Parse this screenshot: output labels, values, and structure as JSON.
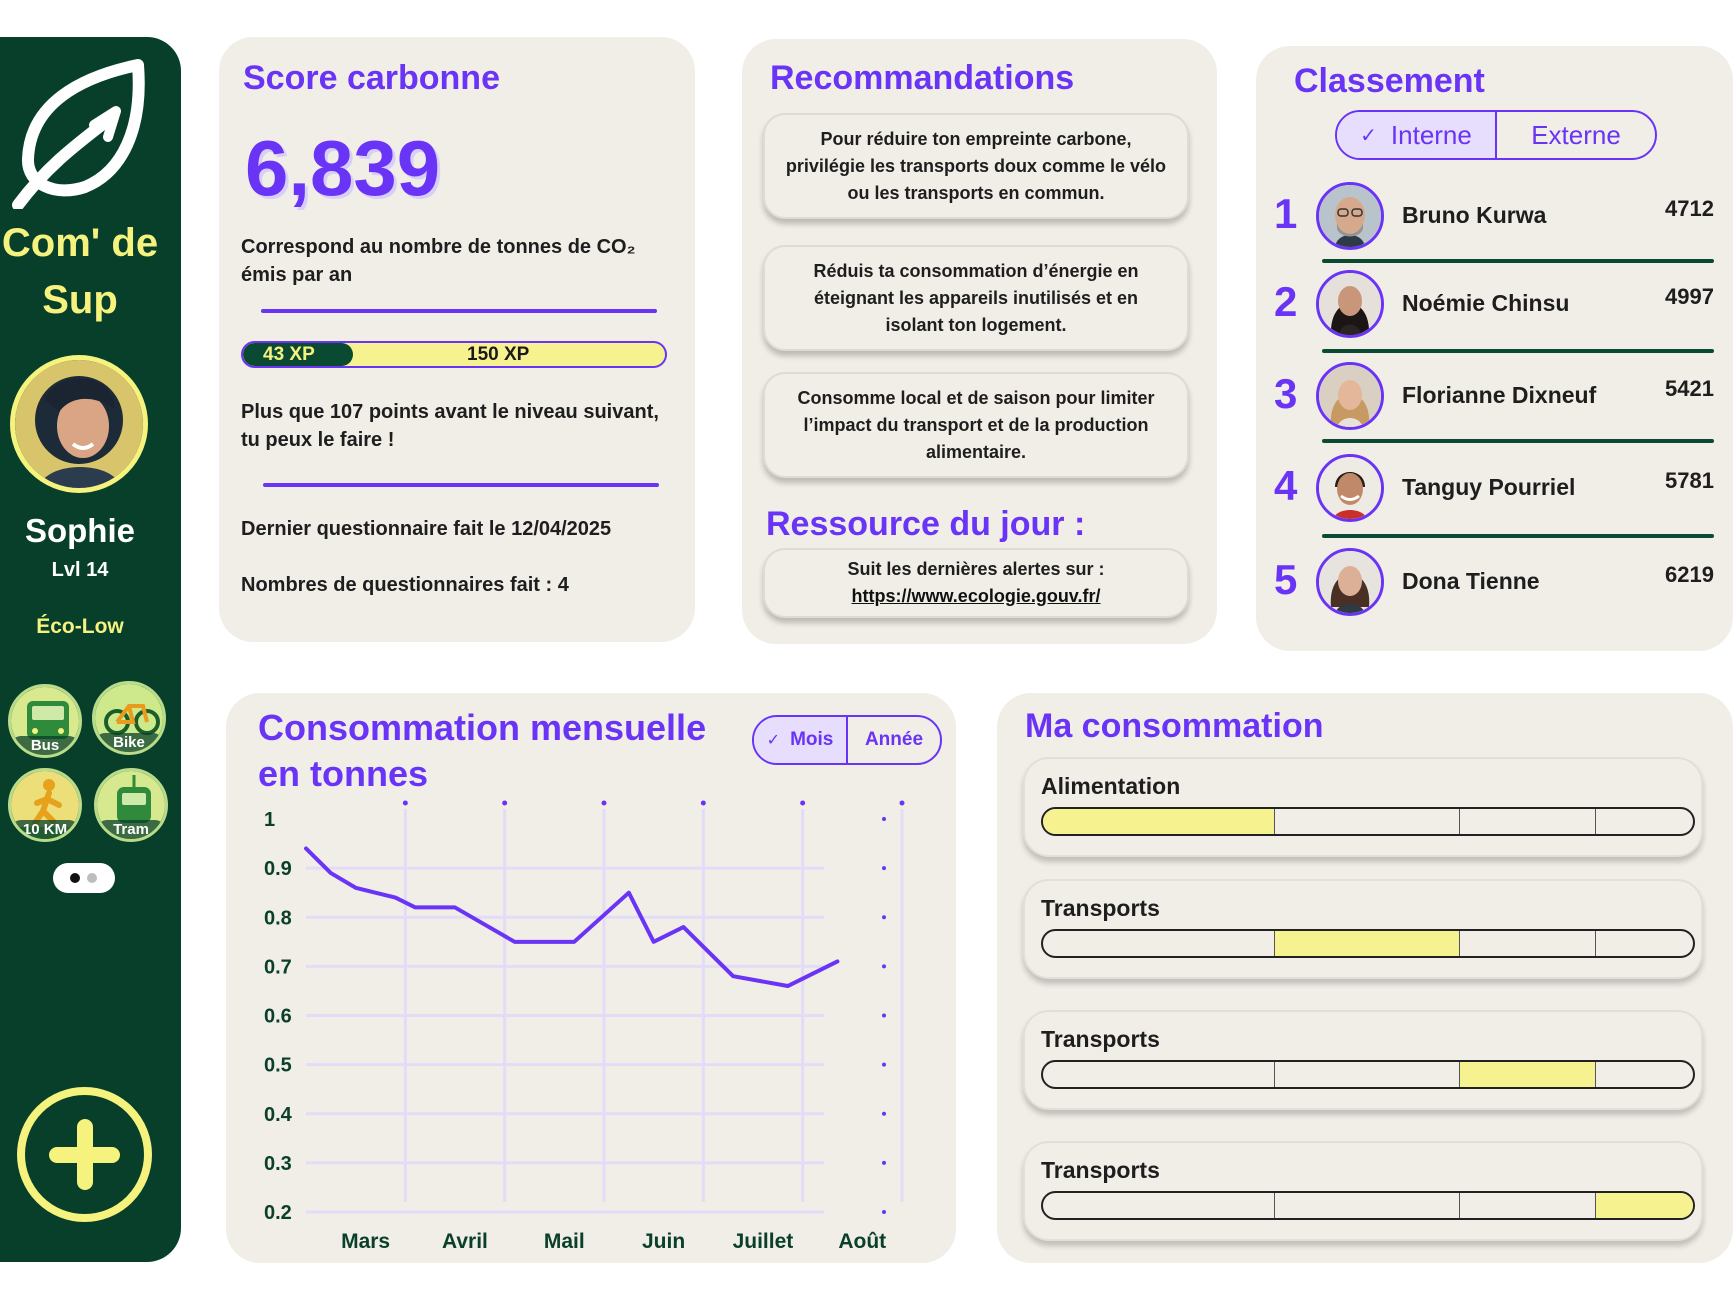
{
  "sidebar": {
    "app_name": "Com' de Sup",
    "user": {
      "name": "Sophie",
      "level": "Lvl 14",
      "rank": "Éco-Low"
    },
    "badges": [
      {
        "label": "Bus",
        "icon": "bus-icon"
      },
      {
        "label": "Bike",
        "icon": "bike-icon"
      },
      {
        "label": "10 KM",
        "icon": "walker-icon"
      },
      {
        "label": "Tram",
        "icon": "tram-icon"
      }
    ]
  },
  "score": {
    "title": "Score carbonne",
    "value": "6,839",
    "description_line1": "Correspond au nombre de tonnes de CO₂",
    "description_line2": "émis par an",
    "xp_current": "43 XP",
    "xp_max": "150 XP",
    "xp_progress": 0.26,
    "next_level_line1": "Plus que 107 points avant le niveau suivant,",
    "next_level_line2": "tu peux le faire !",
    "last_quiz": "Dernier questionnaire fait le 12/04/2025",
    "quiz_count": "Nombres de questionnaires fait : 4"
  },
  "recommendations": {
    "title": "Recommandations",
    "items": [
      {
        "l1": "Pour réduire ton empreinte carbone,",
        "l2": "privilégie les transports doux comme le vélo",
        "l3": "ou les transports en commun."
      },
      {
        "l1": "Réduis ta consommation d’énergie en",
        "l2": "éteignant les appareils inutilisés et en",
        "l3": "isolant ton logement."
      },
      {
        "l1": "Consomme local et de saison pour limiter",
        "l2": "l’impact du transport et de la production",
        "l3": "alimentaire."
      }
    ],
    "resource_title": "Ressource du jour :",
    "resource_text": "Suit les dernières alertes sur :",
    "resource_link": "https://www.ecologie.gouv.fr/"
  },
  "leaderboard": {
    "title": "Classement",
    "tab_internal": "Interne",
    "tab_external": "Externe",
    "entries": [
      {
        "rank": "1",
        "name": "Bruno Kurwa",
        "score": "4712"
      },
      {
        "rank": "2",
        "name": "Noémie Chinsu",
        "score": "4997"
      },
      {
        "rank": "3",
        "name": "Florianne Dixneuf",
        "score": "5421"
      },
      {
        "rank": "4",
        "name": "Tanguy Pourriel",
        "score": "5781"
      },
      {
        "rank": "5",
        "name": "Dona Tienne",
        "score": "6219"
      }
    ]
  },
  "monthly": {
    "title_line1": "Consommation mensuelle",
    "title_line2": "en tonnes",
    "tab_month": "Mois",
    "tab_year": "Année"
  },
  "chart_data": {
    "type": "line",
    "title": "Consommation mensuelle en tonnes",
    "x_ticks": [
      "Mars",
      "Avril",
      "Mail",
      "Juin",
      "Juillet",
      "Août"
    ],
    "y_ticks": [
      "1",
      "0.9",
      "0.8",
      "0.7",
      "0.6",
      "0.5",
      "0.4",
      "0.3",
      "0.2"
    ],
    "ylim": [
      0.2,
      1
    ],
    "x_range": [
      0,
      6
    ],
    "series": [
      {
        "x": [
          0,
          0.25,
          0.5,
          0.9,
          1.1,
          1.5,
          2.1,
          2.7,
          3.25,
          3.5,
          3.8,
          4.3,
          4.85,
          5.35
        ],
        "values": [
          0.94,
          0.89,
          0.86,
          0.84,
          0.82,
          0.82,
          0.75,
          0.75,
          0.85,
          0.75,
          0.78,
          0.68,
          0.66,
          0.71
        ]
      }
    ],
    "grid": true,
    "colors": {
      "line": "#6a34f6",
      "grid": "#e3dcf8"
    }
  },
  "consumption": {
    "title": "Ma consommation",
    "items": [
      {
        "label": "Alimentation",
        "level": 0
      },
      {
        "label": "Transports",
        "level": 1
      },
      {
        "label": "Transports",
        "level": 2
      },
      {
        "label": "Transports",
        "level": 3
      }
    ]
  },
  "colors": {
    "accent": "#6a34f6",
    "sidebar": "#073f2a",
    "highlight": "#f6f27e",
    "card": "#f1eee8"
  }
}
